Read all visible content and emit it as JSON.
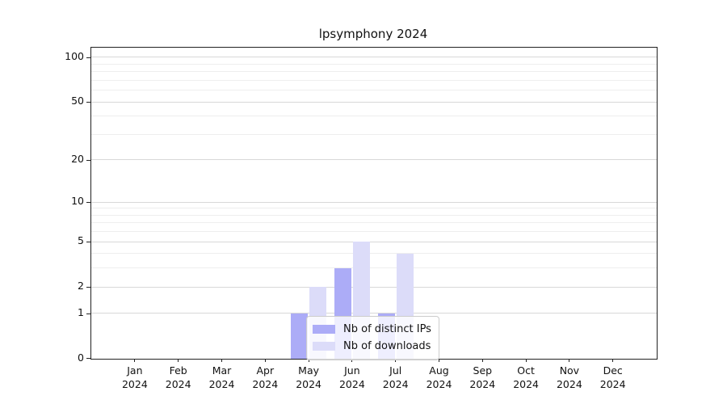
{
  "chart_data": {
    "type": "bar",
    "title": "lpsymphony 2024",
    "categories": [
      "Jan",
      "Feb",
      "Mar",
      "Apr",
      "May",
      "Jun",
      "Jul",
      "Aug",
      "Sep",
      "Oct",
      "Nov",
      "Dec"
    ],
    "x_year_label": "2024",
    "series": [
      {
        "name": "Nb of distinct IPs",
        "color": "#acacf7",
        "values": [
          0,
          0,
          0,
          0,
          1,
          3,
          1,
          0,
          0,
          0,
          0,
          0
        ]
      },
      {
        "name": "Nb of downloads",
        "color": "#dcdcf9",
        "values": [
          0,
          0,
          0,
          0,
          2,
          5,
          4,
          0,
          0,
          0,
          0,
          0
        ]
      }
    ],
    "yscale": "log1p",
    "ylim": [
      0,
      116
    ],
    "yticks": [
      0,
      1,
      2,
      5,
      10,
      20,
      50,
      100
    ],
    "minor_yticks": [
      3,
      4,
      6,
      7,
      8,
      9,
      30,
      40,
      60,
      70,
      80,
      90
    ],
    "grid": "horizontal",
    "legend_position": "lower center",
    "colors": {
      "major_grid": "#d8d8d8",
      "minor_grid": "#eeeeee",
      "spine": "#222222"
    }
  }
}
